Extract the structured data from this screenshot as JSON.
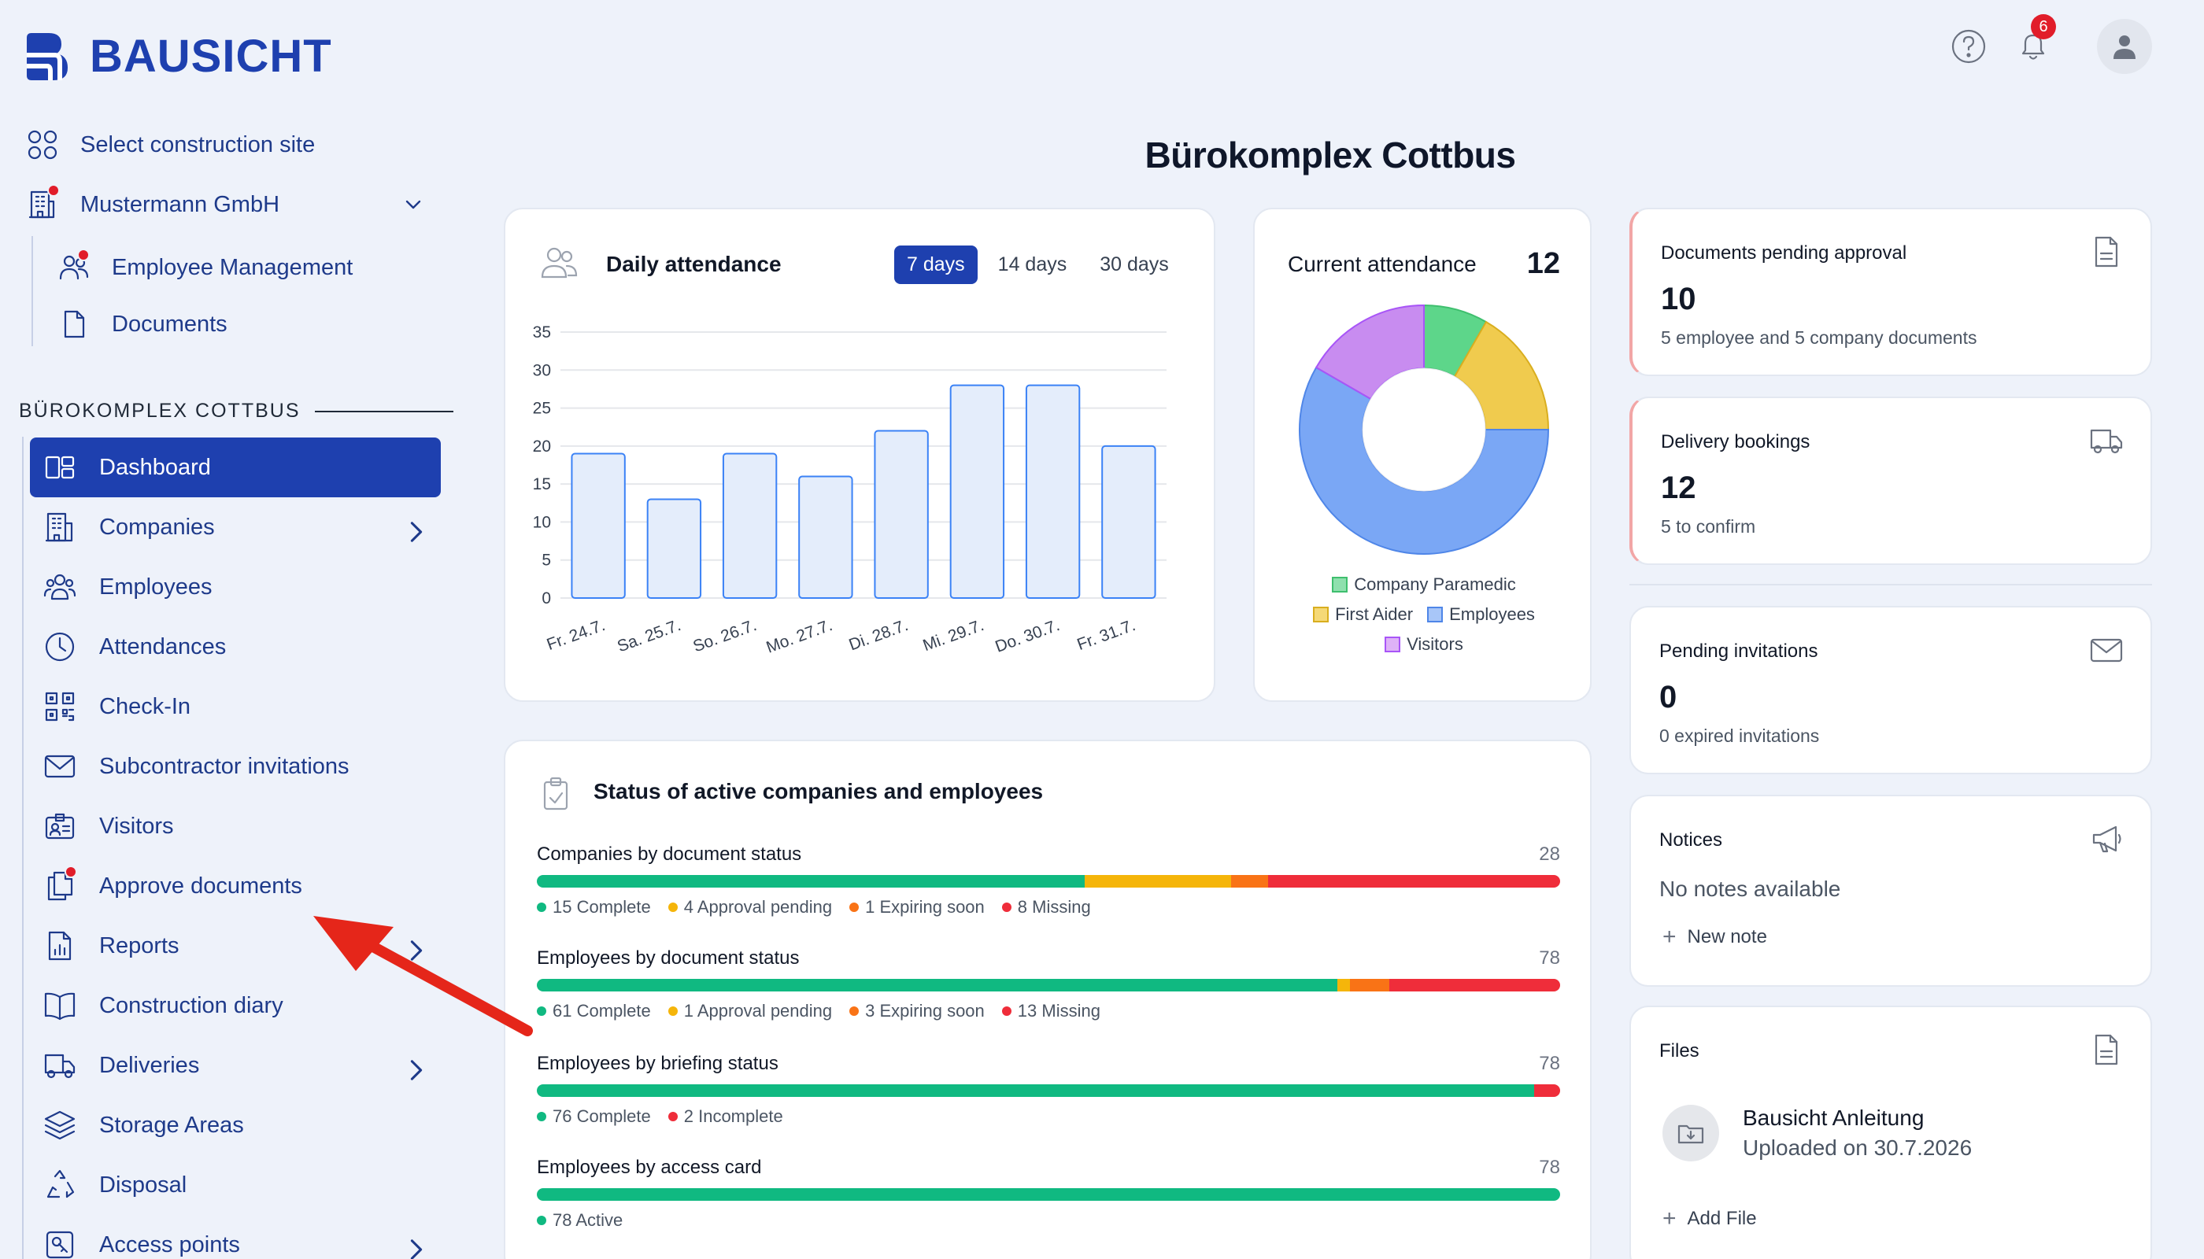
{
  "brand": {
    "name": "BAUSICHT"
  },
  "header": {
    "help_icon": "help-circle-icon",
    "notifications_icon": "bell-icon",
    "notification_count": "6",
    "avatar_icon": "user-icon"
  },
  "top_nav": {
    "select_site": "Select construction site",
    "company": "Mustermann GmbH",
    "employee_management": "Employee Management",
    "documents": "Documents"
  },
  "section": {
    "label": "BÜROKOMPLEX COTTBUS"
  },
  "menu": [
    {
      "label": "Dashboard",
      "icon": "dashboard-icon",
      "active": true
    },
    {
      "label": "Companies",
      "icon": "building-icon",
      "chevron": true
    },
    {
      "label": "Employees",
      "icon": "users-icon"
    },
    {
      "label": "Attendances",
      "icon": "clock-icon"
    },
    {
      "label": "Check-In",
      "icon": "qr-code-icon"
    },
    {
      "label": "Subcontractor invitations",
      "icon": "mail-icon"
    },
    {
      "label": "Visitors",
      "icon": "id-badge-icon"
    },
    {
      "label": "Approve documents",
      "icon": "files-icon",
      "dot": true
    },
    {
      "label": "Reports",
      "icon": "report-icon",
      "chevron": true
    },
    {
      "label": "Construction diary",
      "icon": "book-icon"
    },
    {
      "label": "Deliveries",
      "icon": "truck-icon",
      "chevron": true
    },
    {
      "label": "Storage Areas",
      "icon": "layers-icon"
    },
    {
      "label": "Disposal",
      "icon": "recycle-icon"
    },
    {
      "label": "Access points",
      "icon": "key-icon",
      "chevron": true
    }
  ],
  "page": {
    "title": "Bürokomplex Cottbus"
  },
  "daily_attendance": {
    "title": "Daily attendance",
    "ranges": [
      "7 days",
      "14 days",
      "30 days"
    ],
    "active_range": "7 days"
  },
  "chart_data": [
    {
      "type": "bar",
      "title": "Daily attendance",
      "categories": [
        "Fr. 24.7.",
        "Sa. 25.7.",
        "So. 26.7.",
        "Mo. 27.7.",
        "Di. 28.7.",
        "Mi. 29.7.",
        "Do. 30.7.",
        "Fr. 31.7."
      ],
      "values": [
        19,
        13,
        19,
        16,
        22,
        28,
        28,
        20
      ],
      "y_ticks": [
        0,
        5,
        10,
        15,
        20,
        25,
        30,
        35
      ],
      "ylim": [
        0,
        35
      ],
      "grid": true,
      "color": "#3b82f6"
    },
    {
      "type": "pie",
      "title": "Current attendance",
      "donut": true,
      "slices": [
        {
          "name": "Company Paramedic",
          "value": 1,
          "color": "#5dd68a"
        },
        {
          "name": "First Aider",
          "value": 2,
          "color": "#f0cb4e"
        },
        {
          "name": "Employees",
          "value": 7,
          "color": "#7aa7f5"
        },
        {
          "name": "Visitors",
          "value": 2,
          "color": "#c88cf0"
        }
      ],
      "legend": "bottom"
    }
  ],
  "current_attendance": {
    "title": "Current attendance",
    "count": "12"
  },
  "status": {
    "title": "Status of active companies and employees",
    "blocks": [
      {
        "label": "Companies by document status",
        "total": "28",
        "segments": [
          {
            "label": "15 Complete",
            "value": 15,
            "color": "#10b981"
          },
          {
            "label": "4 Approval pending",
            "value": 4,
            "color": "#f5b50a"
          },
          {
            "label": "1 Expiring soon",
            "value": 1,
            "color": "#f97316"
          },
          {
            "label": "8 Missing",
            "value": 8,
            "color": "#ef2d3a"
          }
        ]
      },
      {
        "label": "Employees by document status",
        "total": "78",
        "segments": [
          {
            "label": "61 Complete",
            "value": 61,
            "color": "#10b981"
          },
          {
            "label": "1 Approval pending",
            "value": 1,
            "color": "#f5b50a"
          },
          {
            "label": "3 Expiring soon",
            "value": 3,
            "color": "#f97316"
          },
          {
            "label": "13 Missing",
            "value": 13,
            "color": "#ef2d3a"
          }
        ]
      },
      {
        "label": "Employees by briefing status",
        "total": "78",
        "segments": [
          {
            "label": "76 Complete",
            "value": 76,
            "color": "#10b981"
          },
          {
            "label": "2 Incomplete",
            "value": 2,
            "color": "#ef2d3a"
          }
        ]
      },
      {
        "label": "Employees by access card",
        "total": "78",
        "segments": [
          {
            "label": "78 Active",
            "value": 78,
            "color": "#10b981"
          }
        ]
      }
    ]
  },
  "documents_pending": {
    "title": "Documents pending approval",
    "value": "10",
    "sub": "5 employee and 5 company documents",
    "icon": "document-icon"
  },
  "delivery_bookings": {
    "title": "Delivery bookings",
    "value": "12",
    "sub": "5 to confirm",
    "icon": "truck-icon"
  },
  "pending_invitations": {
    "title": "Pending invitations",
    "value": "0",
    "sub": "0 expired invitations",
    "icon": "mail-icon"
  },
  "notices": {
    "title": "Notices",
    "empty": "No notes available",
    "new_note": "New note",
    "icon": "megaphone-icon"
  },
  "files": {
    "title": "Files",
    "file_name": "Bausicht Anleitung",
    "file_date": "Uploaded on 30.7.2026",
    "add_file": "Add File",
    "icon": "document-icon"
  }
}
